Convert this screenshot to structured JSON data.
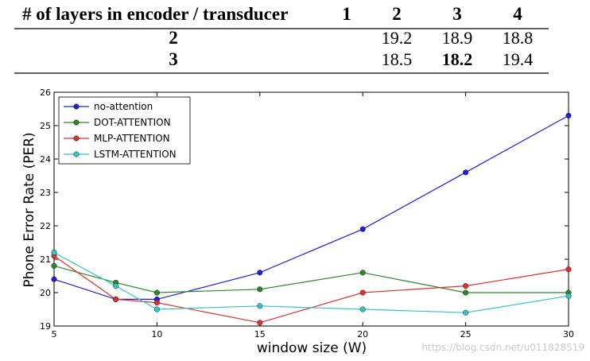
{
  "table": {
    "header": {
      "label": "# of layers in encoder / transducer",
      "columns": [
        "1",
        "2",
        "3",
        "4"
      ]
    },
    "rows": [
      {
        "label": "2",
        "values": [
          "",
          "19.2",
          "18.9",
          "18.8"
        ]
      },
      {
        "label": "3",
        "values": [
          "",
          "18.5",
          "18.2",
          "19.4"
        ]
      }
    ],
    "best_value": "18.2"
  },
  "chart_data": {
    "type": "line",
    "title": "",
    "xlabel": "window size (W)",
    "ylabel": "Phone Error Rate (PER)",
    "x": [
      5,
      8,
      10,
      15,
      20,
      25,
      30
    ],
    "xlim": [
      5,
      30
    ],
    "ylim": [
      19,
      26
    ],
    "xticks": [
      5,
      10,
      15,
      20,
      25,
      30
    ],
    "yticks": [
      19,
      20,
      21,
      22,
      23,
      24,
      25,
      26
    ],
    "grid": false,
    "legend_position": "top-left",
    "series": [
      {
        "name": "no-attention",
        "color": "#1f1fe0",
        "values": [
          20.4,
          19.8,
          19.8,
          20.6,
          21.9,
          23.6,
          25.3
        ]
      },
      {
        "name": "DOT-ATTENTION",
        "color": "#2a8a2a",
        "values": [
          20.8,
          20.3,
          20.0,
          20.1,
          20.6,
          20.0,
          20.0
        ]
      },
      {
        "name": "MLP-ATTENTION",
        "color": "#e03030",
        "values": [
          21.1,
          19.8,
          19.7,
          19.1,
          20.0,
          20.2,
          20.7
        ]
      },
      {
        "name": "LSTM-ATTENTION",
        "color": "#33c4c4",
        "values": [
          21.2,
          20.2,
          19.5,
          19.6,
          19.5,
          19.4,
          19.9
        ]
      }
    ]
  },
  "watermark": "https://blog.csdn.net/u011828519"
}
